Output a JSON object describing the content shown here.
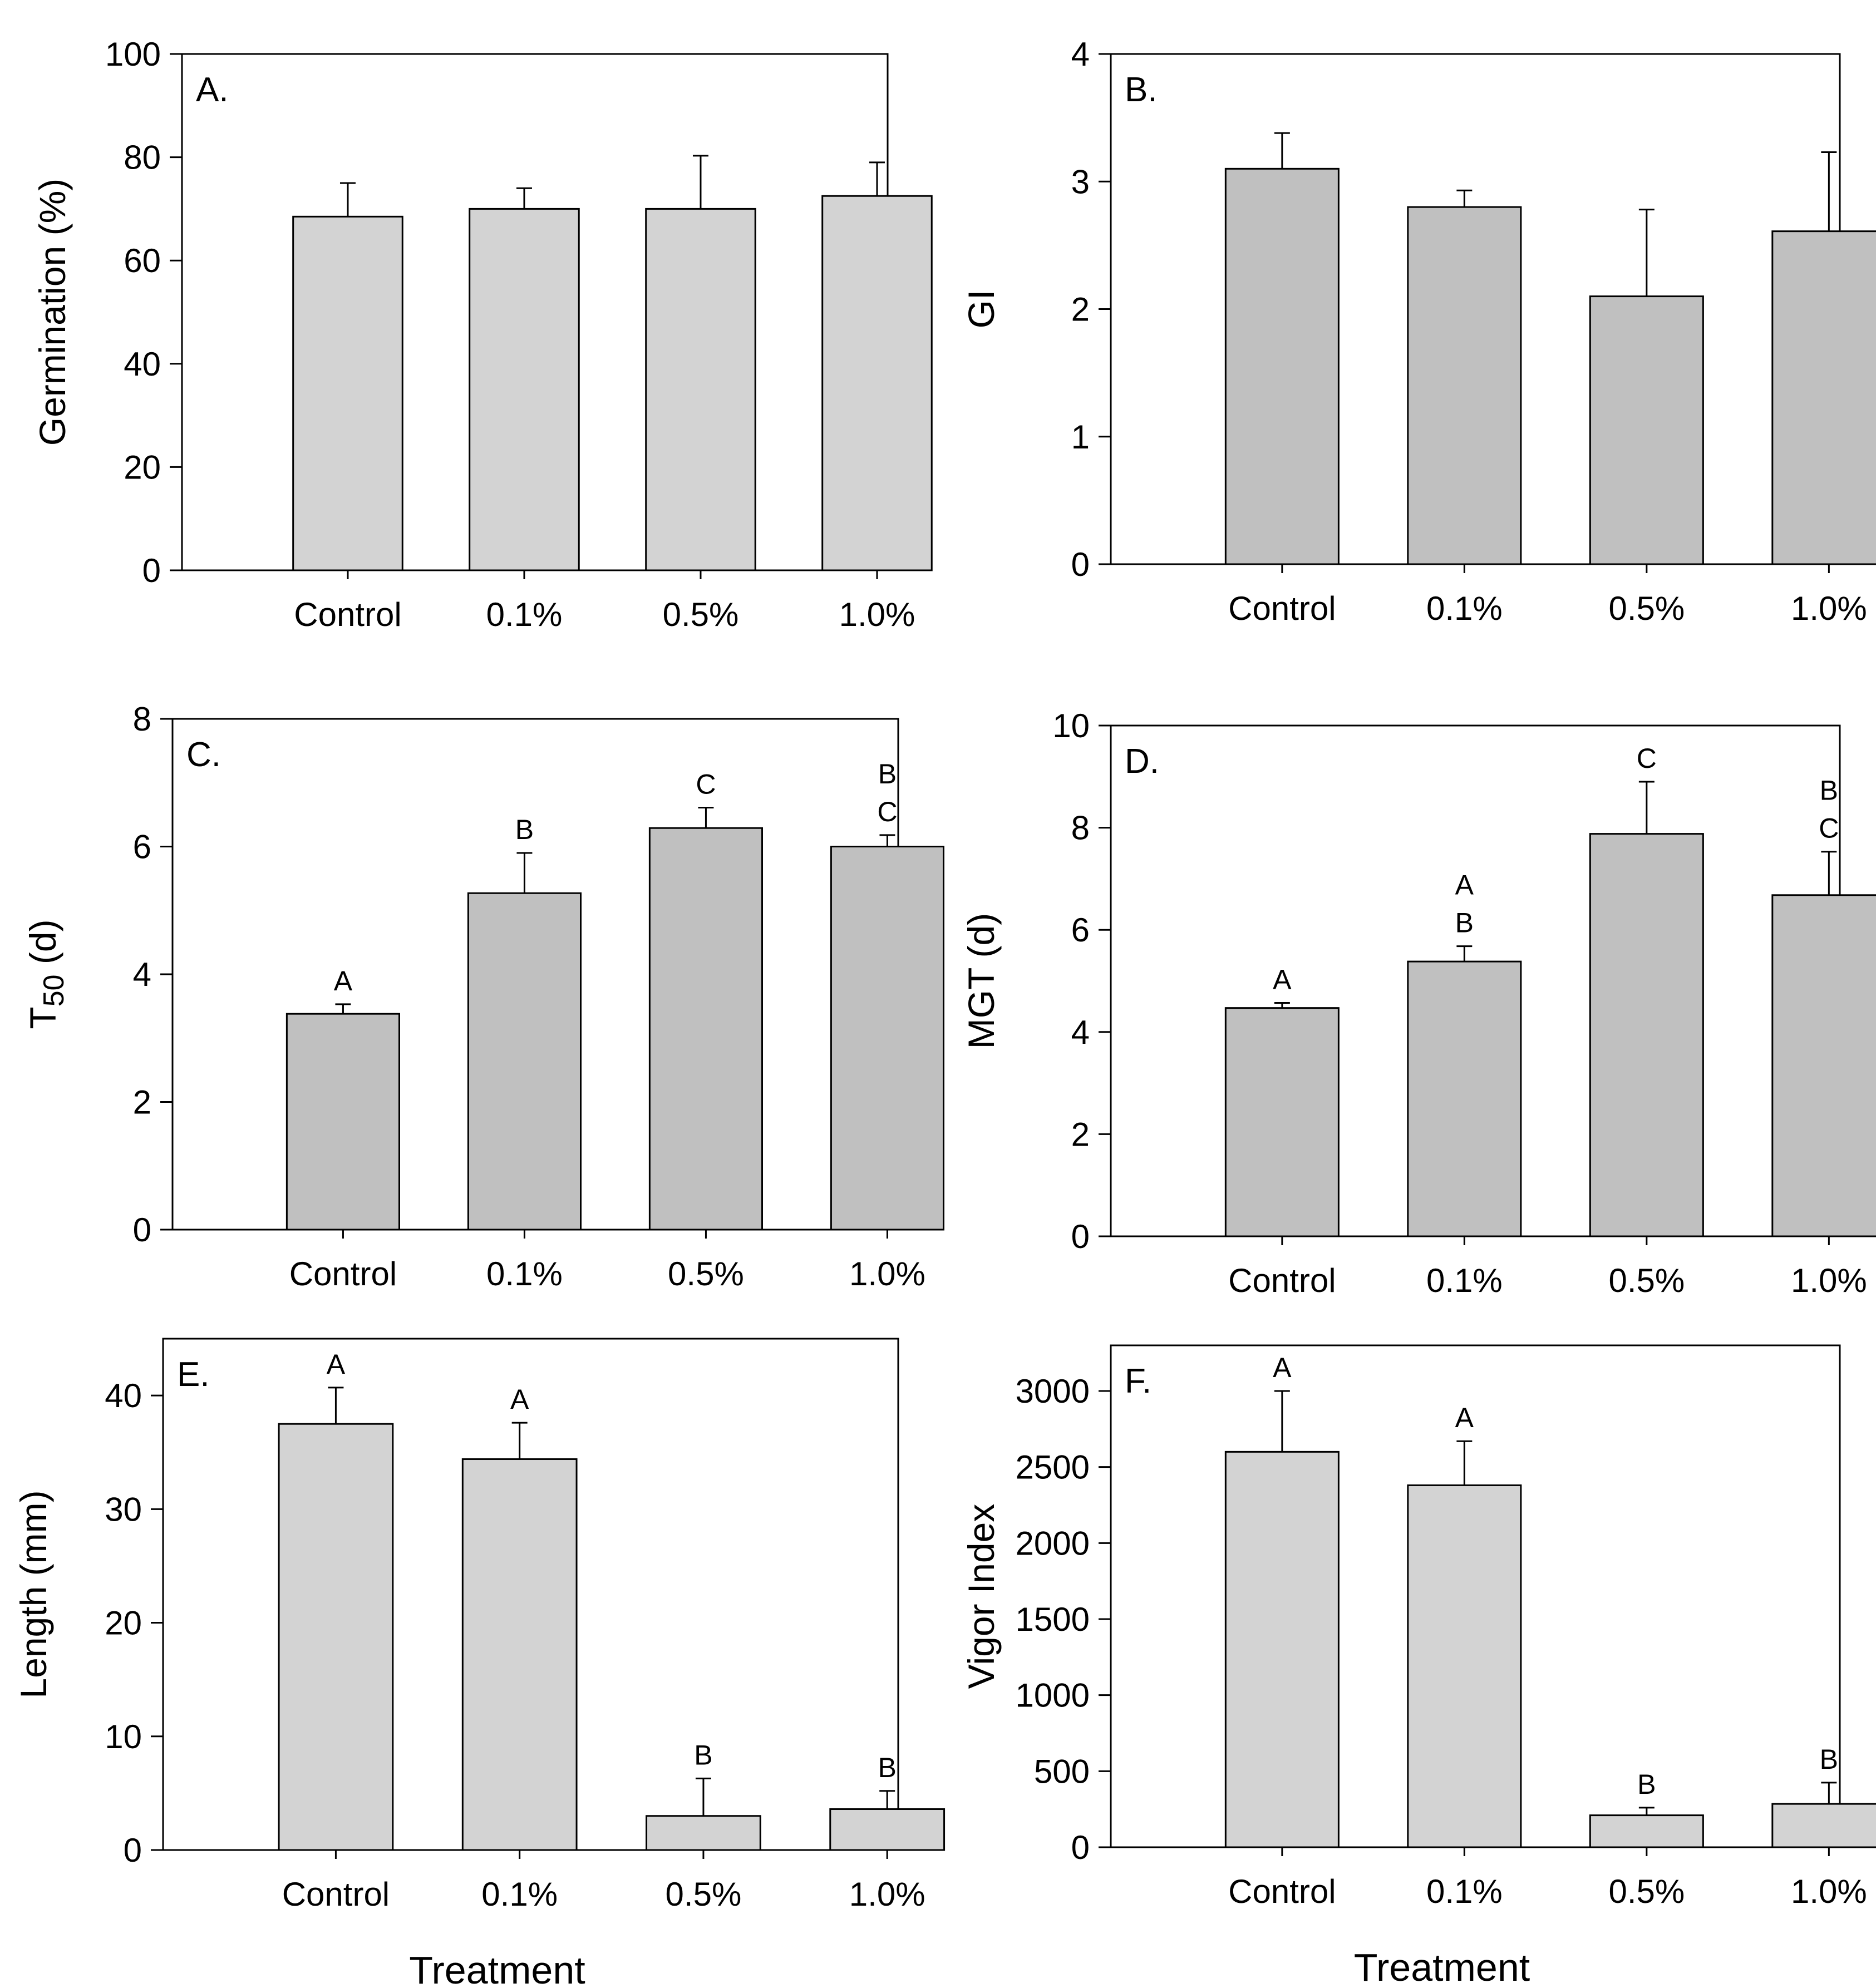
{
  "figure": {
    "xlabel_panels_ef": "Treatment"
  },
  "chart_data": [
    {
      "panel": "A.",
      "type": "bar",
      "categories": [
        "Control",
        "0.1%",
        "0.5%",
        "1.0%"
      ],
      "values": [
        68.5,
        70.0,
        70.0,
        72.5
      ],
      "errors": [
        6.5,
        4.0,
        10.3,
        6.5
      ],
      "letters": [
        [],
        [],
        [],
        []
      ],
      "ylabel": "Germination (%)",
      "xlabel": "",
      "ylim": [
        0,
        100
      ],
      "yticks": [
        0,
        20,
        40,
        60,
        80,
        100
      ],
      "bar_color": "#d3d3d3",
      "grid": false
    },
    {
      "panel": "B.",
      "type": "bar",
      "categories": [
        "Control",
        "0.1%",
        "0.5%",
        "1.0%"
      ],
      "values": [
        3.1,
        2.8,
        2.1,
        2.61
      ],
      "errors": [
        0.28,
        0.13,
        0.68,
        0.62
      ],
      "letters": [
        [],
        [],
        [],
        []
      ],
      "ylabel": "GI",
      "xlabel": "",
      "ylim": [
        0,
        4
      ],
      "yticks": [
        0,
        1,
        2,
        3,
        4
      ],
      "bar_color": "#c0c0c0",
      "grid": false
    },
    {
      "panel": "C.",
      "type": "bar",
      "categories": [
        "Control",
        "0.1%",
        "0.5%",
        "1.0%"
      ],
      "values": [
        3.38,
        5.27,
        6.29,
        6.0
      ],
      "errors": [
        0.15,
        0.63,
        0.32,
        0.18
      ],
      "letters": [
        [
          "A"
        ],
        [
          "B"
        ],
        [
          "C"
        ],
        [
          "B",
          "C"
        ]
      ],
      "ylabel": "T50 (d)",
      "ylabel_main": "T",
      "ylabel_sub": "50",
      "ylabel_rest": " (d)",
      "xlabel": "",
      "ylim": [
        0,
        8
      ],
      "yticks": [
        0,
        2,
        4,
        6,
        8
      ],
      "bar_color": "#c0c0c0",
      "grid": false
    },
    {
      "panel": "D.",
      "type": "bar",
      "categories": [
        "Control",
        "0.1%",
        "0.5%",
        "1.0%"
      ],
      "values": [
        4.47,
        5.38,
        7.88,
        6.68
      ],
      "errors": [
        0.1,
        0.3,
        1.02,
        0.85
      ],
      "letters": [
        [
          "A"
        ],
        [
          "A",
          "B"
        ],
        [
          "C"
        ],
        [
          "B",
          "C"
        ]
      ],
      "ylabel": "MGT (d)",
      "xlabel": "",
      "ylim": [
        0,
        10
      ],
      "yticks": [
        0,
        2,
        4,
        6,
        8,
        10
      ],
      "bar_color": "#c0c0c0",
      "grid": false
    },
    {
      "panel": "E.",
      "type": "bar",
      "categories": [
        "Control",
        "0.1%",
        "0.5%",
        "1.0%"
      ],
      "values": [
        37.5,
        34.4,
        3.0,
        3.6
      ],
      "errors": [
        3.2,
        3.2,
        3.3,
        1.6
      ],
      "letters": [
        [
          "A"
        ],
        [
          "A"
        ],
        [
          "B"
        ],
        [
          "B"
        ]
      ],
      "ylabel": "Length (mm)",
      "xlabel": "Treatment",
      "ylim": [
        0,
        45
      ],
      "yticks": [
        0,
        10,
        20,
        30,
        40
      ],
      "bar_color": "#d3d3d3",
      "grid": false
    },
    {
      "panel": "F.",
      "type": "bar",
      "categories": [
        "Control",
        "0.1%",
        "0.5%",
        "1.0%"
      ],
      "values": [
        2600,
        2380,
        210,
        285
      ],
      "errors": [
        400,
        290,
        50,
        140
      ],
      "letters": [
        [
          "A"
        ],
        [
          "A"
        ],
        [
          "B"
        ],
        [
          "B"
        ]
      ],
      "ylabel": "Vigor Index",
      "xlabel": "Treatment",
      "ylim": [
        0,
        3300
      ],
      "yticks": [
        0,
        500,
        1000,
        1500,
        2000,
        2500,
        3000
      ],
      "bar_color": "#d3d3d3",
      "grid": false
    }
  ]
}
